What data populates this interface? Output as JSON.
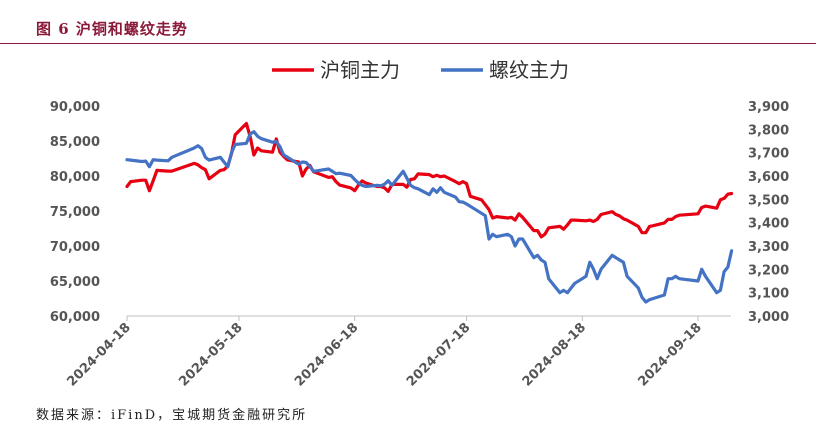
{
  "figure_title": "图 6 沪铜和螺纹走势",
  "source_note": "数据来源：iFinD，宝城期货金融研究所",
  "chart_data": {
    "type": "line",
    "title": "",
    "legend": {
      "placement": "top"
    },
    "x_ticks": [
      "2024-04-18",
      "2024-05-18",
      "2024-06-18",
      "2024-07-18",
      "2024-08-18",
      "2024-09-18"
    ],
    "x_range": [
      "2024-04-18",
      "2024-09-27"
    ],
    "y_left": {
      "min": 60000,
      "max": 90000,
      "step": 5000,
      "ticks": [
        "60,000",
        "65,000",
        "70,000",
        "75,000",
        "80,000",
        "85,000",
        "90,000"
      ]
    },
    "y_right": {
      "min": 3000,
      "max": 3900,
      "step": 100,
      "ticks": [
        "3,000",
        "3,100",
        "3,200",
        "3,300",
        "3,400",
        "3,500",
        "3,600",
        "3,700",
        "3,800",
        "3,900"
      ]
    },
    "series": [
      {
        "name": "沪铜主力",
        "color": "#e60012",
        "axis": "left",
        "points": [
          [
            "2024-04-18",
            78500
          ],
          [
            "2024-04-19",
            79200
          ],
          [
            "2024-04-22",
            79400
          ],
          [
            "2024-04-23",
            79400
          ],
          [
            "2024-04-24",
            77900
          ],
          [
            "2024-04-25",
            79300
          ],
          [
            "2024-04-26",
            80800
          ],
          [
            "2024-04-29",
            80700
          ],
          [
            "2024-04-30",
            80700
          ],
          [
            "2024-05-06",
            81800
          ],
          [
            "2024-05-07",
            81600
          ],
          [
            "2024-05-08",
            81200
          ],
          [
            "2024-05-09",
            80900
          ],
          [
            "2024-05-10",
            79600
          ],
          [
            "2024-05-13",
            80800
          ],
          [
            "2024-05-14",
            80900
          ],
          [
            "2024-05-15",
            81400
          ],
          [
            "2024-05-16",
            83200
          ],
          [
            "2024-05-17",
            85900
          ],
          [
            "2024-05-20",
            87500
          ],
          [
            "2024-05-21",
            85600
          ],
          [
            "2024-05-22",
            83000
          ],
          [
            "2024-05-23",
            84000
          ],
          [
            "2024-05-24",
            83600
          ],
          [
            "2024-05-27",
            83400
          ],
          [
            "2024-05-28",
            85300
          ],
          [
            "2024-05-29",
            83400
          ],
          [
            "2024-05-30",
            82800
          ],
          [
            "2024-05-31",
            82300
          ],
          [
            "2024-06-03",
            82000
          ],
          [
            "2024-06-04",
            80000
          ],
          [
            "2024-06-05",
            81000
          ],
          [
            "2024-06-06",
            81500
          ],
          [
            "2024-06-07",
            80600
          ],
          [
            "2024-06-11",
            79800
          ],
          [
            "2024-06-12",
            79900
          ],
          [
            "2024-06-13",
            79200
          ],
          [
            "2024-06-14",
            78700
          ],
          [
            "2024-06-17",
            78300
          ],
          [
            "2024-06-18",
            77900
          ],
          [
            "2024-06-19",
            78700
          ],
          [
            "2024-06-20",
            79300
          ],
          [
            "2024-06-21",
            79000
          ],
          [
            "2024-06-24",
            78500
          ],
          [
            "2024-06-25",
            78500
          ],
          [
            "2024-06-26",
            78300
          ],
          [
            "2024-06-27",
            77800
          ],
          [
            "2024-06-28",
            78800
          ],
          [
            "2024-07-01",
            78800
          ],
          [
            "2024-07-02",
            78400
          ],
          [
            "2024-07-03",
            79500
          ],
          [
            "2024-07-04",
            79600
          ],
          [
            "2024-07-05",
            80300
          ],
          [
            "2024-07-08",
            80200
          ],
          [
            "2024-07-09",
            79900
          ],
          [
            "2024-07-10",
            80100
          ],
          [
            "2024-07-11",
            79900
          ],
          [
            "2024-07-12",
            80000
          ],
          [
            "2024-07-15",
            79200
          ],
          [
            "2024-07-16",
            78900
          ],
          [
            "2024-07-17",
            79200
          ],
          [
            "2024-07-18",
            78900
          ],
          [
            "2024-07-19",
            77100
          ],
          [
            "2024-07-22",
            76600
          ],
          [
            "2024-07-23",
            75900
          ],
          [
            "2024-07-24",
            75200
          ],
          [
            "2024-07-25",
            74000
          ],
          [
            "2024-07-26",
            74200
          ],
          [
            "2024-07-29",
            74000
          ],
          [
            "2024-07-30",
            74100
          ],
          [
            "2024-07-31",
            73700
          ],
          [
            "2024-08-01",
            74600
          ],
          [
            "2024-08-02",
            74100
          ],
          [
            "2024-08-05",
            72200
          ],
          [
            "2024-08-06",
            72200
          ],
          [
            "2024-08-07",
            71300
          ],
          [
            "2024-08-08",
            71700
          ],
          [
            "2024-08-09",
            72600
          ],
          [
            "2024-08-12",
            72800
          ],
          [
            "2024-08-13",
            72400
          ],
          [
            "2024-08-14",
            73000
          ],
          [
            "2024-08-15",
            73700
          ],
          [
            "2024-08-16",
            73700
          ],
          [
            "2024-08-19",
            73600
          ],
          [
            "2024-08-20",
            73700
          ],
          [
            "2024-08-21",
            73500
          ],
          [
            "2024-08-22",
            73800
          ],
          [
            "2024-08-23",
            74500
          ],
          [
            "2024-08-26",
            74900
          ],
          [
            "2024-08-27",
            74500
          ],
          [
            "2024-08-28",
            74300
          ],
          [
            "2024-08-29",
            73900
          ],
          [
            "2024-08-30",
            73700
          ],
          [
            "2024-09-02",
            72800
          ],
          [
            "2024-09-03",
            71900
          ],
          [
            "2024-09-04",
            71900
          ],
          [
            "2024-09-05",
            72800
          ],
          [
            "2024-09-06",
            72900
          ],
          [
            "2024-09-09",
            73300
          ],
          [
            "2024-09-10",
            73800
          ],
          [
            "2024-09-11",
            73800
          ],
          [
            "2024-09-12",
            74200
          ],
          [
            "2024-09-13",
            74400
          ],
          [
            "2024-09-18",
            74600
          ],
          [
            "2024-09-19",
            75500
          ],
          [
            "2024-09-20",
            75700
          ],
          [
            "2024-09-23",
            75400
          ],
          [
            "2024-09-24",
            76600
          ],
          [
            "2024-09-25",
            76800
          ],
          [
            "2024-09-26",
            77400
          ],
          [
            "2024-09-27",
            77500
          ]
        ]
      },
      {
        "name": "螺纹主力",
        "color": "#4472c4",
        "axis": "right",
        "points": [
          [
            "2024-04-18",
            3670
          ],
          [
            "2024-04-19",
            3668
          ],
          [
            "2024-04-22",
            3662
          ],
          [
            "2024-04-23",
            3664
          ],
          [
            "2024-04-24",
            3640
          ],
          [
            "2024-04-25",
            3670
          ],
          [
            "2024-04-26",
            3668
          ],
          [
            "2024-04-29",
            3665
          ],
          [
            "2024-04-30",
            3680
          ],
          [
            "2024-05-06",
            3720
          ],
          [
            "2024-05-07",
            3730
          ],
          [
            "2024-05-08",
            3718
          ],
          [
            "2024-05-09",
            3680
          ],
          [
            "2024-05-10",
            3668
          ],
          [
            "2024-05-13",
            3680
          ],
          [
            "2024-05-14",
            3660
          ],
          [
            "2024-05-15",
            3640
          ],
          [
            "2024-05-16",
            3700
          ],
          [
            "2024-05-17",
            3735
          ],
          [
            "2024-05-20",
            3740
          ],
          [
            "2024-05-21",
            3780
          ],
          [
            "2024-05-22",
            3790
          ],
          [
            "2024-05-23",
            3770
          ],
          [
            "2024-05-24",
            3760
          ],
          [
            "2024-05-27",
            3745
          ],
          [
            "2024-05-28",
            3748
          ],
          [
            "2024-05-29",
            3725
          ],
          [
            "2024-05-30",
            3690
          ],
          [
            "2024-05-31",
            3680
          ],
          [
            "2024-06-03",
            3650
          ],
          [
            "2024-06-04",
            3660
          ],
          [
            "2024-06-05",
            3658
          ],
          [
            "2024-06-06",
            3640
          ],
          [
            "2024-06-07",
            3620
          ],
          [
            "2024-06-11",
            3630
          ],
          [
            "2024-06-12",
            3620
          ],
          [
            "2024-06-13",
            3610
          ],
          [
            "2024-06-14",
            3612
          ],
          [
            "2024-06-17",
            3602
          ],
          [
            "2024-06-18",
            3585
          ],
          [
            "2024-06-19",
            3570
          ],
          [
            "2024-06-20",
            3560
          ],
          [
            "2024-06-21",
            3555
          ],
          [
            "2024-06-24",
            3560
          ],
          [
            "2024-06-25",
            3558
          ],
          [
            "2024-06-26",
            3565
          ],
          [
            "2024-06-27",
            3580
          ],
          [
            "2024-06-28",
            3560
          ],
          [
            "2024-07-01",
            3620
          ],
          [
            "2024-07-02",
            3590
          ],
          [
            "2024-07-03",
            3560
          ],
          [
            "2024-07-04",
            3550
          ],
          [
            "2024-07-05",
            3545
          ],
          [
            "2024-07-08",
            3520
          ],
          [
            "2024-07-09",
            3545
          ],
          [
            "2024-07-10",
            3530
          ],
          [
            "2024-07-11",
            3550
          ],
          [
            "2024-07-12",
            3530
          ],
          [
            "2024-07-15",
            3510
          ],
          [
            "2024-07-16",
            3490
          ],
          [
            "2024-07-17",
            3488
          ],
          [
            "2024-07-18",
            3480
          ],
          [
            "2024-07-19",
            3470
          ],
          [
            "2024-07-22",
            3440
          ],
          [
            "2024-07-23",
            3430
          ],
          [
            "2024-07-24",
            3330
          ],
          [
            "2024-07-25",
            3350
          ],
          [
            "2024-07-26",
            3340
          ],
          [
            "2024-07-29",
            3350
          ],
          [
            "2024-07-30",
            3340
          ],
          [
            "2024-07-31",
            3300
          ],
          [
            "2024-08-01",
            3330
          ],
          [
            "2024-08-02",
            3330
          ],
          [
            "2024-08-05",
            3250
          ],
          [
            "2024-08-06",
            3260
          ],
          [
            "2024-08-07",
            3240
          ],
          [
            "2024-08-08",
            3230
          ],
          [
            "2024-08-09",
            3160
          ],
          [
            "2024-08-12",
            3100
          ],
          [
            "2024-08-13",
            3110
          ],
          [
            "2024-08-14",
            3100
          ],
          [
            "2024-08-15",
            3120
          ],
          [
            "2024-08-16",
            3140
          ],
          [
            "2024-08-19",
            3170
          ],
          [
            "2024-08-20",
            3230
          ],
          [
            "2024-08-21",
            3200
          ],
          [
            "2024-08-22",
            3160
          ],
          [
            "2024-08-23",
            3200
          ],
          [
            "2024-08-26",
            3260
          ],
          [
            "2024-08-27",
            3250
          ],
          [
            "2024-08-28",
            3240
          ],
          [
            "2024-08-29",
            3230
          ],
          [
            "2024-08-30",
            3170
          ],
          [
            "2024-09-02",
            3120
          ],
          [
            "2024-09-03",
            3080
          ],
          [
            "2024-09-04",
            3060
          ],
          [
            "2024-09-05",
            3070
          ],
          [
            "2024-09-06",
            3075
          ],
          [
            "2024-09-09",
            3090
          ],
          [
            "2024-09-10",
            3160
          ],
          [
            "2024-09-11",
            3160
          ],
          [
            "2024-09-12",
            3170
          ],
          [
            "2024-09-13",
            3160
          ],
          [
            "2024-09-18",
            3150
          ],
          [
            "2024-09-19",
            3200
          ],
          [
            "2024-09-20",
            3170
          ],
          [
            "2024-09-23",
            3100
          ],
          [
            "2024-09-24",
            3110
          ],
          [
            "2024-09-25",
            3190
          ],
          [
            "2024-09-26",
            3210
          ],
          [
            "2024-09-27",
            3280
          ]
        ]
      }
    ]
  }
}
